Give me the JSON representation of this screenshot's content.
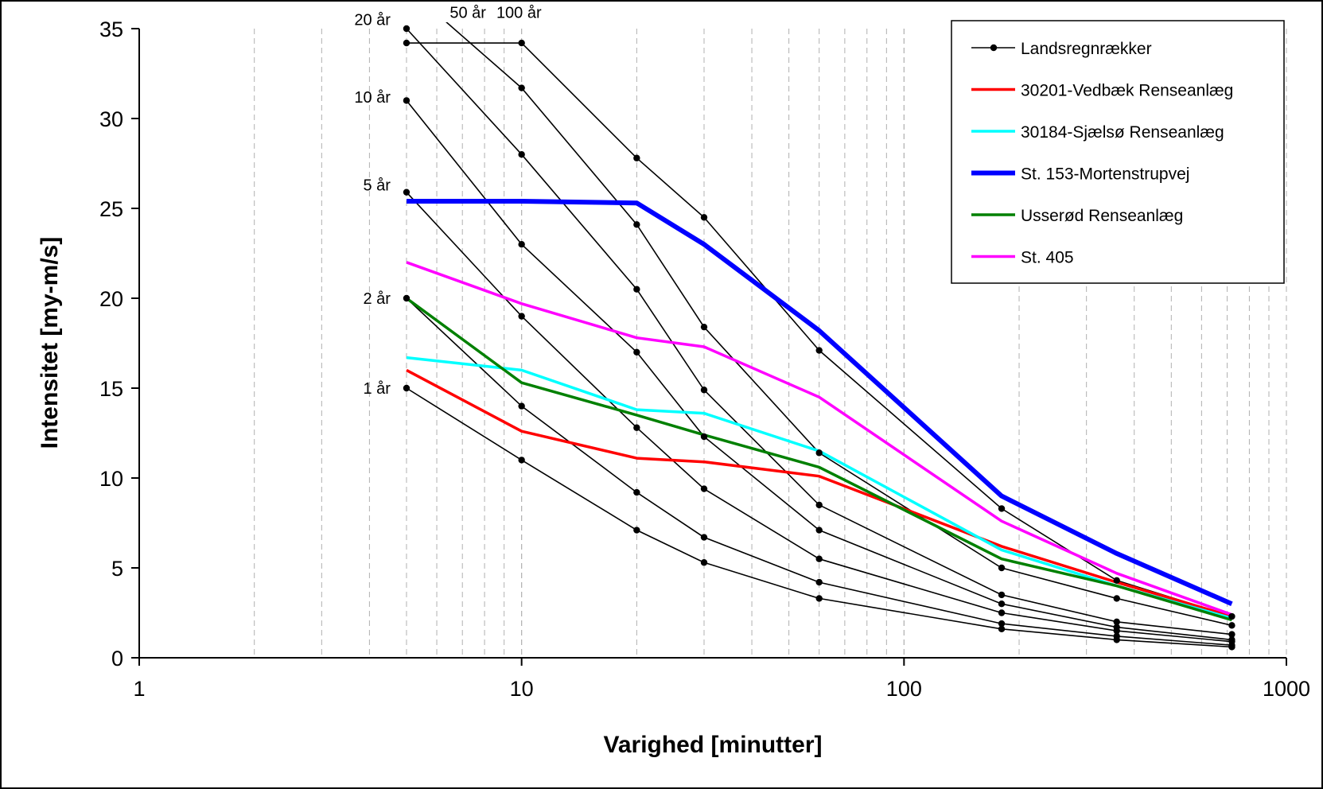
{
  "chart_data": {
    "type": "line",
    "title": "",
    "xlabel": "Varighed [minutter]",
    "ylabel": "Intensitet [my-m/s]",
    "x_scale": "log",
    "xlim": [
      1,
      1000
    ],
    "ylim": [
      0,
      35
    ],
    "x_ticks": [
      1,
      10,
      100,
      1000
    ],
    "x_tick_labels": [
      "1",
      "10",
      "100",
      "1000"
    ],
    "y_ticks": [
      0,
      5,
      10,
      15,
      20,
      25,
      30,
      35
    ],
    "y_tick_labels": [
      "0",
      "5",
      "10",
      "15",
      "20",
      "25",
      "30",
      "35"
    ],
    "grid": "vertical dashed minor gridlines",
    "legend_position": "top-right",
    "reference_curves": {
      "legend_name": "Landsregnrækker",
      "color": "#000000",
      "x": [
        5,
        10,
        20,
        30,
        60,
        180,
        360,
        720
      ],
      "curves": [
        {
          "label": "1 år",
          "values": [
            15.0,
            11.0,
            7.1,
            5.3,
            3.3,
            1.6,
            1.0,
            0.6
          ]
        },
        {
          "label": "2 år",
          "values": [
            20.0,
            14.0,
            9.2,
            6.7,
            4.2,
            1.9,
            1.2,
            0.7
          ]
        },
        {
          "label": "5 år",
          "values": [
            25.9,
            19.0,
            12.8,
            9.4,
            5.5,
            2.5,
            1.5,
            0.9
          ]
        },
        {
          "label": "10 år",
          "values": [
            31.0,
            23.0,
            17.0,
            12.3,
            7.1,
            3.0,
            1.7,
            1.0
          ]
        },
        {
          "label": "20 år",
          "values": [
            35.0,
            28.0,
            20.5,
            14.9,
            8.5,
            3.5,
            2.0,
            1.3
          ]
        },
        {
          "label": "50 år",
          "values": [
            37.3,
            31.7,
            24.1,
            18.4,
            11.4,
            5.0,
            3.3,
            1.8
          ]
        },
        {
          "label": "100 år",
          "values": [
            34.2,
            34.2,
            27.8,
            24.5,
            17.1,
            8.3,
            4.3,
            2.3
          ]
        }
      ]
    },
    "series": [
      {
        "name": "30201-Vedbæk Renseanlæg",
        "color": "#ff0000",
        "x": [
          5,
          10,
          20,
          30,
          60,
          180,
          360,
          720
        ],
        "values": [
          16.0,
          12.6,
          11.1,
          10.9,
          10.1,
          6.2,
          4.2,
          2.3
        ]
      },
      {
        "name": "30184-Sjælsø Renseanlæg",
        "color": "#00ffff",
        "x": [
          5,
          10,
          20,
          30,
          60,
          180,
          360,
          720
        ],
        "values": [
          16.7,
          16.0,
          13.8,
          13.6,
          11.5,
          6.0,
          4.0,
          2.2
        ]
      },
      {
        "name": "St. 153-Mortenstrupvej",
        "color": "#0000ff",
        "x": [
          5,
          10,
          20,
          30,
          60,
          180,
          360,
          720
        ],
        "values": [
          25.4,
          25.4,
          25.3,
          23.0,
          18.2,
          9.0,
          5.8,
          3.0
        ]
      },
      {
        "name": "Usserød Renseanlæg",
        "color": "#008000",
        "x": [
          5,
          10,
          20,
          30,
          60,
          180,
          360,
          720
        ],
        "values": [
          20.0,
          15.3,
          13.5,
          12.4,
          10.6,
          5.5,
          4.0,
          2.1
        ]
      },
      {
        "name": "St. 405",
        "color": "#ff00ff",
        "x": [
          5,
          10,
          20,
          30,
          60,
          180,
          360,
          720
        ],
        "values": [
          22.0,
          19.7,
          17.8,
          17.3,
          14.5,
          7.6,
          4.7,
          2.4
        ]
      }
    ]
  }
}
